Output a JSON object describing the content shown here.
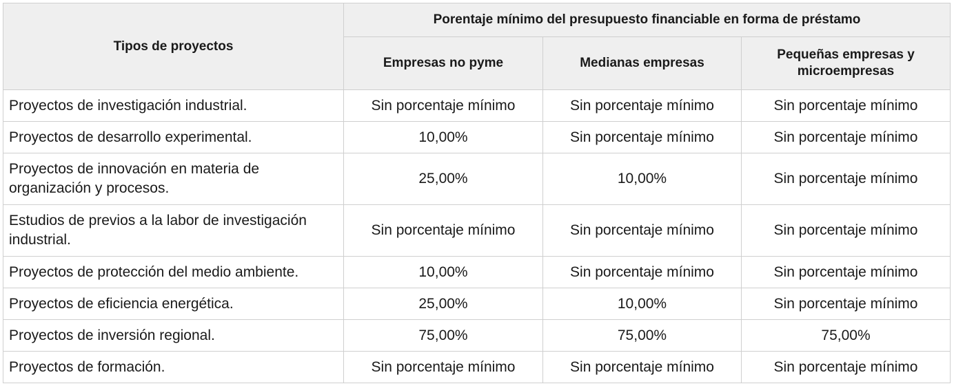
{
  "table": {
    "row_header": "Tipos de proyectos",
    "group_header": "Porentaje mínimo del presupuesto financiable en forma de préstamo",
    "columns": [
      "Empresas no pyme",
      "Medianas empresas",
      "Pequeñas empresas y microempresas"
    ],
    "rows": [
      {
        "label": "Proyectos de investigación industrial.",
        "values": [
          "Sin porcentaje mínimo",
          "Sin porcentaje mínimo",
          "Sin porcentaje mínimo"
        ]
      },
      {
        "label": "Proyectos de desarrollo experimental.",
        "values": [
          "10,00%",
          "Sin porcentaje mínimo",
          "Sin porcentaje mínimo"
        ]
      },
      {
        "label": "Proyectos de innovación en materia de organización y procesos.",
        "values": [
          "25,00%",
          "10,00%",
          "Sin porcentaje mínimo"
        ]
      },
      {
        "label": "Estudios de previos a la labor de investigación industrial.",
        "values": [
          "Sin porcentaje mínimo",
          "Sin porcentaje mínimo",
          "Sin porcentaje mínimo"
        ]
      },
      {
        "label": "Proyectos de protección del medio ambiente.",
        "values": [
          "10,00%",
          "Sin porcentaje mínimo",
          "Sin porcentaje mínimo"
        ]
      },
      {
        "label": "Proyectos de eficiencia energética.",
        "values": [
          "25,00%",
          "10,00%",
          "Sin porcentaje mínimo"
        ]
      },
      {
        "label": "Proyectos de inversión regional.",
        "values": [
          "75,00%",
          "75,00%",
          "75,00%"
        ]
      },
      {
        "label": "Proyectos de formación.",
        "values": [
          "Sin porcentaje mínimo",
          "Sin porcentaje mínimo",
          "Sin porcentaje mínimo"
        ]
      }
    ]
  }
}
